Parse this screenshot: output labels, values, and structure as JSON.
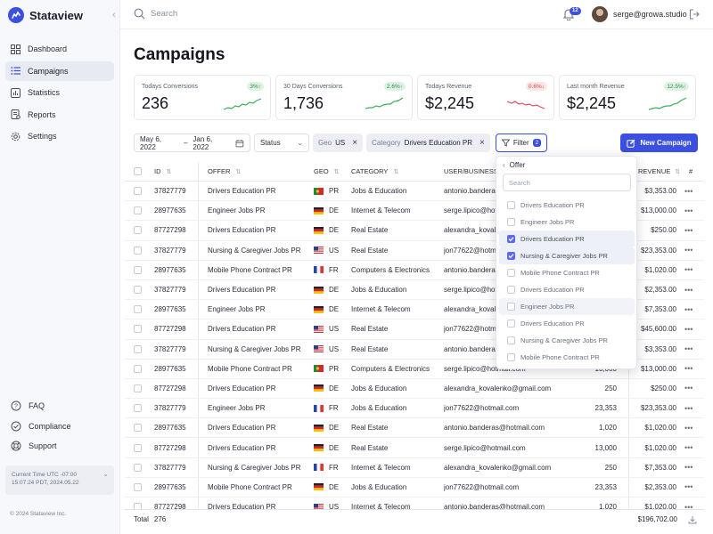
{
  "app": {
    "name": "Stataview",
    "copyright": "© 2024 Stataview Inc."
  },
  "sidebar": {
    "items": [
      {
        "label": "Dashboard",
        "icon": "grid-icon",
        "active": false
      },
      {
        "label": "Campaigns",
        "icon": "list-icon",
        "active": true
      },
      {
        "label": "Statistics",
        "icon": "bar-chart-icon",
        "active": false
      },
      {
        "label": "Reports",
        "icon": "report-icon",
        "active": false
      },
      {
        "label": "Settings",
        "icon": "gear-icon",
        "active": false
      }
    ],
    "footer_items": [
      {
        "label": "FAQ",
        "icon": "help-circle-icon"
      },
      {
        "label": "Compliance",
        "icon": "compliance-icon"
      },
      {
        "label": "Support",
        "icon": "lifebuoy-icon"
      }
    ],
    "time_line1": "Current Time UTC -07:00",
    "time_line2": "15:07:24 PDT, 2024.05.22"
  },
  "topbar": {
    "search_placeholder": "Search",
    "notification_count": "12",
    "user_email": "serge@growa.studio"
  },
  "page": {
    "title": "Campaigns"
  },
  "stats": [
    {
      "label": "Todays Conversions",
      "value": "236",
      "badge": "3%↑",
      "trend": "up",
      "color": "#3fae5b"
    },
    {
      "label": "30 Days Conversions",
      "value": "1,736",
      "badge": "2.6%↑",
      "trend": "up",
      "color": "#3fae5b"
    },
    {
      "label": "Todays Revenue",
      "value": "$2,245",
      "badge": "0.6%↓",
      "trend": "down",
      "color": "#e0505c"
    },
    {
      "label": "Last month Revenue",
      "value": "$2,245",
      "badge": "12.5%↑",
      "trend": "up",
      "color": "#3fae5b"
    }
  ],
  "filters": {
    "date_from": "May 6, 2022",
    "date_sep": "–",
    "date_to": "Jan 6, 2022",
    "status_label": "Status",
    "geo_key": "Geo",
    "geo_value": "US",
    "category_key": "Category",
    "category_value": "Drivers Education PR",
    "filter_label": "Filter",
    "filter_count": "2",
    "new_campaign_label": "New Campaign"
  },
  "table": {
    "headers": {
      "id": "ID",
      "offer": "OFFER",
      "geo": "GEO",
      "category": "CATEGORY",
      "user": "USER/BUSINESS",
      "revenue": "REVENUE",
      "more": "#"
    },
    "rows": [
      {
        "id": "37827779",
        "offer": "Drivers Education PR",
        "flag": "PR",
        "geo": "PR",
        "category": "Jobs & Education",
        "user": "antonio.banderas@hotmail.com",
        "count": "",
        "revenue": "$3,353.00"
      },
      {
        "id": "28977635",
        "offer": "Engineer Jobs PR",
        "flag": "DE",
        "geo": "DE",
        "category": "Internet & Telecom",
        "user": "serge.lipico@hotmail.com",
        "count": "",
        "revenue": "$13,000.00"
      },
      {
        "id": "87727298",
        "offer": "Drivers Education PR",
        "flag": "DE",
        "geo": "DE",
        "category": "Real Estate",
        "user": "alexandra_kovalenko@gmail.com",
        "count": "",
        "revenue": "$250.00"
      },
      {
        "id": "37827779",
        "offer": "Nursing & Caregiver Jobs PR",
        "flag": "US",
        "geo": "US",
        "category": "Real Estate",
        "user": "jon77622@hotmail.com",
        "count": "",
        "revenue": "$23,353.00"
      },
      {
        "id": "28977635",
        "offer": "Mobile Phone Contract PR",
        "flag": "FR",
        "geo": "FR",
        "category": "Computers & Electronics",
        "user": "antonio.banderas@hotmail.com",
        "count": "",
        "revenue": "$1,020.00"
      },
      {
        "id": "37827779",
        "offer": "Drivers Education PR",
        "flag": "DE",
        "geo": "DE",
        "category": "Jobs & Education",
        "user": "serge.lipico@hotmail.com",
        "count": "",
        "revenue": "$2,353.00"
      },
      {
        "id": "28977635",
        "offer": "Engineer Jobs PR",
        "flag": "DE",
        "geo": "DE",
        "category": "Internet & Telecom",
        "user": "alexandra_kovalenko@gmail.com",
        "count": "",
        "revenue": "$7,353.00"
      },
      {
        "id": "87727298",
        "offer": "Drivers Education PR",
        "flag": "US",
        "geo": "US",
        "category": "Real Estate",
        "user": "jon77622@hotmail.com",
        "count": "",
        "revenue": "$45,600.00"
      },
      {
        "id": "37827779",
        "offer": "Nursing & Caregiver Jobs PR",
        "flag": "US",
        "geo": "US",
        "category": "Real Estate",
        "user": "antonio.banderas@hotmail.com",
        "count": "",
        "revenue": "$3,353.00"
      },
      {
        "id": "28977635",
        "offer": "Mobile Phone Contract PR",
        "flag": "PR",
        "geo": "PR",
        "category": "Computers & Electronics",
        "user": "serge.lipico@hotmail.com",
        "count": "13,000",
        "revenue": "$13,000.00"
      },
      {
        "id": "87727298",
        "offer": "Drivers Education PR",
        "flag": "DE",
        "geo": "DE",
        "category": "Jobs & Education",
        "user": "alexandra_kovalenko@gmail.com",
        "count": "250",
        "revenue": "$250.00"
      },
      {
        "id": "37827779",
        "offer": "Engineer Jobs PR",
        "flag": "FR",
        "geo": "FR",
        "category": "Jobs & Education",
        "user": "jon77622@hotmail.com",
        "count": "23,353",
        "revenue": "$23,353.00"
      },
      {
        "id": "28977635",
        "offer": "Drivers Education PR",
        "flag": "DE",
        "geo": "DE",
        "category": "Real Estate",
        "user": "antonio.banderas@hotmail.com",
        "count": "1,020",
        "revenue": "$1,020.00"
      },
      {
        "id": "87727298",
        "offer": "Drivers Education PR",
        "flag": "DE",
        "geo": "DE",
        "category": "Real Estate",
        "user": "serge.lipico@hotmail.com",
        "count": "13,000",
        "revenue": "$1,020.00"
      },
      {
        "id": "37827779",
        "offer": "Nursing & Caregiver Jobs PR",
        "flag": "FR",
        "geo": "FR",
        "category": "Internet & Telecom",
        "user": "alexandra_kovalenko@gmail.com",
        "count": "250",
        "revenue": "$7,353.00"
      },
      {
        "id": "28977635",
        "offer": "Mobile Phone Contract PR",
        "flag": "DE",
        "geo": "DE",
        "category": "Jobs & Education",
        "user": "jon77622@hotmail.com",
        "count": "23,353",
        "revenue": "$2,353.00"
      },
      {
        "id": "87727298",
        "offer": "Drivers Education PR",
        "flag": "US",
        "geo": "US",
        "category": "Internet & Telecom",
        "user": "antonio.banderas@hotmail.com",
        "count": "1,020",
        "revenue": "$1,020.00"
      }
    ],
    "total_label": "Total",
    "total_count": "276",
    "total_revenue": "$196,702.00"
  },
  "popup": {
    "title": "Offer",
    "search_placeholder": "Search",
    "options": [
      {
        "label": "Drivers Education PR",
        "checked": false,
        "hover": false
      },
      {
        "label": "Engineer Jobs PR",
        "checked": false,
        "hover": false
      },
      {
        "label": "Drivers Education PR",
        "checked": true,
        "hover": false
      },
      {
        "label": "Nursing & Caregiver Jobs PR",
        "checked": true,
        "hover": false
      },
      {
        "label": "Mobile Phone Contract PR",
        "checked": false,
        "hover": false
      },
      {
        "label": "Drivers Education PR",
        "checked": false,
        "hover": false
      },
      {
        "label": "Engineer Jobs PR",
        "checked": false,
        "hover": true
      },
      {
        "label": "Drivers Education PR",
        "checked": false,
        "hover": false
      },
      {
        "label": "Nursing & Caregiver Jobs PR",
        "checked": false,
        "hover": false
      },
      {
        "label": "Mobile Phone Contract PR",
        "checked": false,
        "hover": false
      }
    ]
  },
  "colors": {
    "accent": "#3b4fe0",
    "up": "#3fae5b",
    "down": "#e0505c"
  }
}
